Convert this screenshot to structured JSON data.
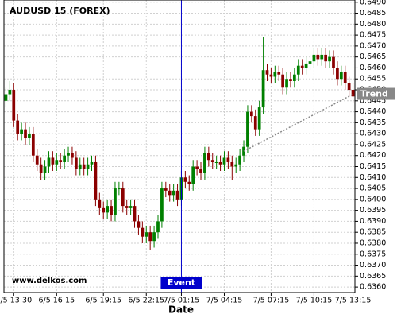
{
  "chart_data": {
    "type": "candlestick",
    "title": "AUDUSD 15 (FOREX)",
    "watermark": "www.delkos.com",
    "x_label": "Date",
    "up_color": "#008000",
    "down_color": "#8b0000",
    "grid": true,
    "open": [
      0.6445,
      0.6448,
      0.645,
      0.6436,
      0.643,
      0.6432,
      0.6428,
      0.643,
      0.642,
      0.6416,
      0.6412,
      0.6415,
      0.6419,
      0.6416,
      0.6418,
      0.6417,
      0.642,
      0.6421,
      0.6419,
      0.6414,
      0.6416,
      0.6414,
      0.6416,
      0.6417,
      0.64,
      0.6396,
      0.6394,
      0.6397,
      0.6393,
      0.6405,
      0.6405,
      0.6397,
      0.6396,
      0.6397,
      0.639,
      0.6387,
      0.6383,
      0.6385,
      0.6381,
      0.6385,
      0.639,
      0.6405,
      0.6404,
      0.6402,
      0.6404,
      0.64,
      0.641,
      0.6408,
      0.6407,
      0.6415,
      0.6414,
      0.6412,
      0.6421,
      0.6418,
      0.6417,
      0.6417,
      0.6416,
      0.6419,
      0.6417,
      0.6415,
      0.6416,
      0.642,
      0.6424,
      0.644,
      0.6438,
      0.6432,
      0.6442,
      0.6459,
      0.6457,
      0.6456,
      0.6458,
      0.6457,
      0.6451,
      0.6455,
      0.6454,
      0.6457,
      0.6461,
      0.646,
      0.6462,
      0.6463,
      0.6466,
      0.6464,
      0.6466,
      0.6463,
      0.6465,
      0.646,
      0.6455,
      0.6458,
      0.6453,
      0.645
    ],
    "high": [
      0.6451,
      0.6454,
      0.6453,
      0.6439,
      0.6435,
      0.6435,
      0.6433,
      0.6433,
      0.6423,
      0.6419,
      0.6418,
      0.6422,
      0.6422,
      0.6421,
      0.6421,
      0.6423,
      0.6424,
      0.6424,
      0.6422,
      0.6419,
      0.6419,
      0.6419,
      0.642,
      0.642,
      0.6403,
      0.6399,
      0.64,
      0.64,
      0.6408,
      0.6408,
      0.6408,
      0.64,
      0.64,
      0.64,
      0.6393,
      0.639,
      0.6388,
      0.6388,
      0.6388,
      0.6393,
      0.6408,
      0.6408,
      0.6407,
      0.6407,
      0.6407,
      0.6413,
      0.6413,
      0.6411,
      0.6418,
      0.6418,
      0.6417,
      0.6424,
      0.6424,
      0.6421,
      0.642,
      0.642,
      0.6422,
      0.6422,
      0.642,
      0.6419,
      0.6423,
      0.6427,
      0.6443,
      0.6443,
      0.6441,
      0.6445,
      0.6474,
      0.6462,
      0.646,
      0.6461,
      0.6461,
      0.646,
      0.6458,
      0.6458,
      0.646,
      0.6464,
      0.6464,
      0.6465,
      0.6466,
      0.6469,
      0.6469,
      0.6469,
      0.6469,
      0.6468,
      0.6468,
      0.6463,
      0.6461,
      0.6461,
      0.6456,
      0.6453
    ],
    "low": [
      0.6442,
      0.6445,
      0.6433,
      0.6427,
      0.6427,
      0.6425,
      0.6425,
      0.6417,
      0.6413,
      0.6409,
      0.6409,
      0.6412,
      0.6413,
      0.6413,
      0.6414,
      0.6414,
      0.6417,
      0.6416,
      0.6411,
      0.6411,
      0.6411,
      0.6411,
      0.6413,
      0.6397,
      0.6393,
      0.6391,
      0.6391,
      0.639,
      0.639,
      0.6402,
      0.6394,
      0.6393,
      0.6393,
      0.6387,
      0.6384,
      0.638,
      0.638,
      0.6377,
      0.6378,
      0.6382,
      0.6387,
      0.6401,
      0.6399,
      0.6399,
      0.6397,
      0.6397,
      0.6405,
      0.6404,
      0.6404,
      0.6411,
      0.6409,
      0.6409,
      0.6415,
      0.6414,
      0.6414,
      0.6413,
      0.6413,
      0.6414,
      0.6409,
      0.6412,
      0.6413,
      0.6417,
      0.6421,
      0.6435,
      0.6429,
      0.6429,
      0.6439,
      0.6454,
      0.6453,
      0.6453,
      0.6454,
      0.6448,
      0.6448,
      0.6451,
      0.6451,
      0.6454,
      0.6457,
      0.6457,
      0.6459,
      0.646,
      0.6461,
      0.6461,
      0.646,
      0.646,
      0.6457,
      0.6452,
      0.6452,
      0.645,
      0.6447,
      0.6444
    ],
    "close": [
      0.6448,
      0.645,
      0.6436,
      0.643,
      0.6432,
      0.6428,
      0.643,
      0.642,
      0.6416,
      0.6412,
      0.6415,
      0.6419,
      0.6416,
      0.6418,
      0.6417,
      0.642,
      0.6421,
      0.6419,
      0.6414,
      0.6416,
      0.6414,
      0.6416,
      0.6417,
      0.64,
      0.6396,
      0.6394,
      0.6397,
      0.6393,
      0.6405,
      0.6405,
      0.6397,
      0.6396,
      0.6397,
      0.639,
      0.6387,
      0.6383,
      0.6385,
      0.6381,
      0.6385,
      0.639,
      0.6405,
      0.6404,
      0.6402,
      0.6404,
      0.64,
      0.641,
      0.6408,
      0.6407,
      0.6415,
      0.6414,
      0.6412,
      0.6421,
      0.6418,
      0.6417,
      0.6417,
      0.6416,
      0.6419,
      0.6417,
      0.6415,
      0.6416,
      0.642,
      0.6424,
      0.644,
      0.6438,
      0.6432,
      0.6442,
      0.6459,
      0.6457,
      0.6456,
      0.6458,
      0.6457,
      0.6451,
      0.6455,
      0.6454,
      0.6457,
      0.6461,
      0.646,
      0.6462,
      0.6463,
      0.6466,
      0.6464,
      0.6466,
      0.6463,
      0.6465,
      0.646,
      0.6455,
      0.6458,
      0.6453,
      0.645,
      0.6447
    ],
    "xticks": [
      {
        "value": 2,
        "label": "6/5 13:30"
      },
      {
        "value": 13,
        "label": "6/5 16:15"
      },
      {
        "value": 25,
        "label": "6/5 19:15"
      },
      {
        "value": 36,
        "label": "6/5 22:15"
      },
      {
        "value": 45,
        "label": "7/5 01:15"
      },
      {
        "value": 56,
        "label": "7/5 04:15"
      },
      {
        "value": 68,
        "label": "7/5 07:15"
      },
      {
        "value": 79,
        "label": "7/5 10:15"
      },
      {
        "value": 89,
        "label": "7/5 13:15"
      }
    ],
    "ylim": [
      0.63575,
      0.6491
    ],
    "yticks": [
      {
        "value": 0.649,
        "label": "0.6490"
      },
      {
        "value": 0.6485,
        "label": "0.6485"
      },
      {
        "value": 0.648,
        "label": "0.6480"
      },
      {
        "value": 0.6475,
        "label": "0.6475"
      },
      {
        "value": 0.647,
        "label": "0.6470"
      },
      {
        "value": 0.6465,
        "label": "0.6465"
      },
      {
        "value": 0.646,
        "label": "0.6460"
      },
      {
        "value": 0.6455,
        "label": "0.6455"
      },
      {
        "value": 0.645,
        "label": "0.6450"
      },
      {
        "value": 0.6445,
        "label": "0.6445"
      },
      {
        "value": 0.644,
        "label": "0.6440"
      },
      {
        "value": 0.6435,
        "label": "0.6435"
      },
      {
        "value": 0.643,
        "label": "0.6430"
      },
      {
        "value": 0.6425,
        "label": "0.6425"
      },
      {
        "value": 0.642,
        "label": "0.6420"
      },
      {
        "value": 0.6415,
        "label": "0.6415"
      },
      {
        "value": 0.641,
        "label": "0.6410"
      },
      {
        "value": 0.6405,
        "label": "0.6405"
      },
      {
        "value": 0.64,
        "label": "0.6400"
      },
      {
        "value": 0.6395,
        "label": "0.6395"
      },
      {
        "value": 0.639,
        "label": "0.6390"
      },
      {
        "value": 0.6385,
        "label": "0.6385"
      },
      {
        "value": 0.638,
        "label": "0.6380"
      },
      {
        "value": 0.6375,
        "label": "0.6375"
      },
      {
        "value": 0.637,
        "label": "0.6370"
      },
      {
        "value": 0.6365,
        "label": "0.6365"
      },
      {
        "value": 0.636,
        "label": "0.6360"
      }
    ],
    "event": {
      "label": "Event",
      "index": 45,
      "color": "#0000cc"
    },
    "trend": {
      "label": "Trend",
      "x": [
        61,
        89
      ],
      "y": [
        0.6422,
        0.6448
      ],
      "color": "#888888"
    }
  }
}
